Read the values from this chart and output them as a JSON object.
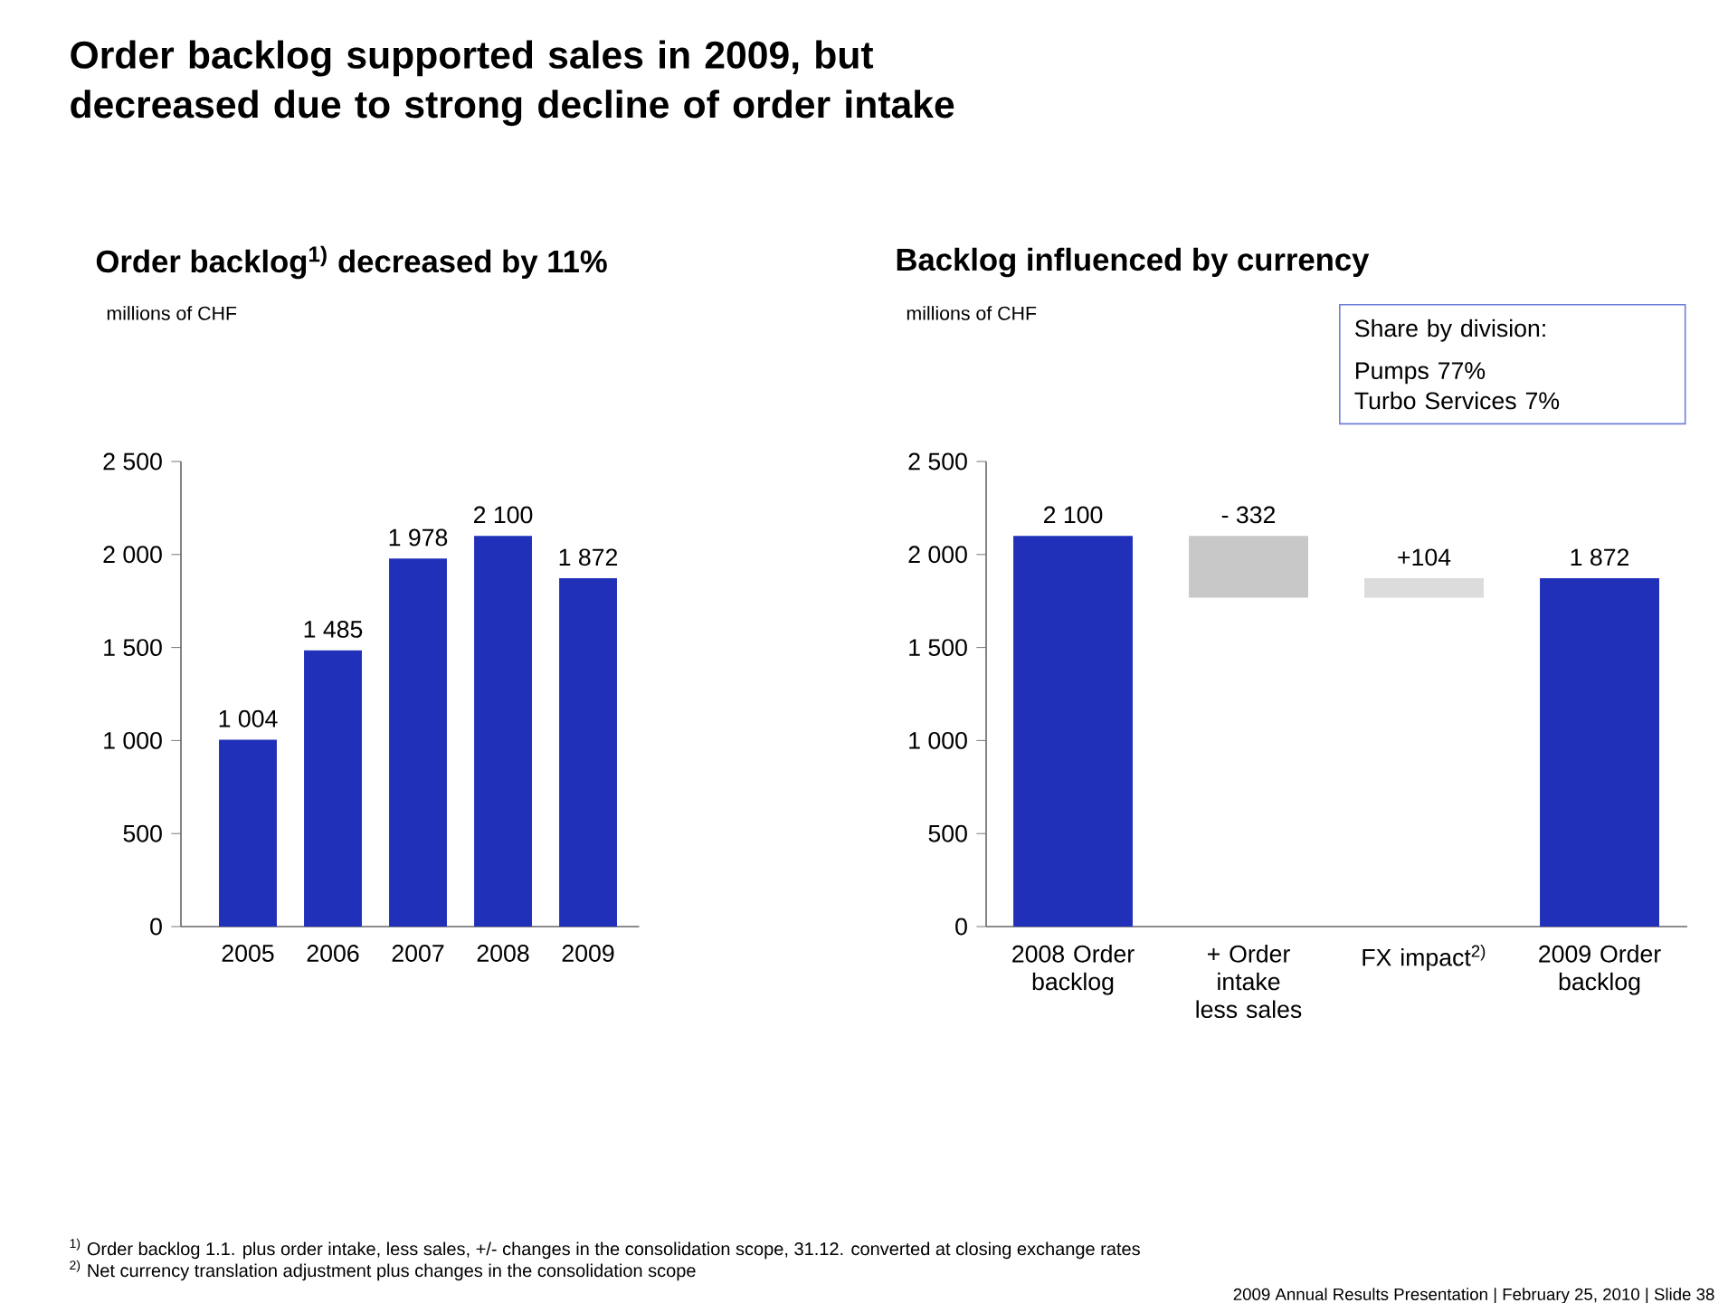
{
  "chart_data": [
    {
      "type": "bar",
      "title": "Order backlog$^{1)}$ decreased by 11%",
      "ylabel": "millions of CHF",
      "categories": [
        "2005",
        "2006",
        "2007",
        "2008",
        "2009"
      ],
      "values": [
        1004,
        1485,
        1978,
        2100,
        1872
      ],
      "color": "#2130b8",
      "value_labels": [
        "1 004",
        "1 485",
        "1 978",
        "2 100",
        "1 872"
      ],
      "ylim": [
        0,
        2500
      ],
      "yticks": [
        0,
        {
          "value": 500,
          "label": "500"
        },
        {
          "value": 1000,
          "label": "1 000"
        },
        {
          "value": 1500,
          "label": "1 500"
        },
        {
          "value": 2000,
          "label": "2 000"
        },
        {
          "value": 2500,
          "label": "2 500"
        }
      ],
      "annotations": [
        "Order backlog supported sales in 2009, but decreased due to strong decline of order intake",
        "$^{1)}$ Order backlog 1.1. plus order intake, less sales, +/- changes in the consolidation scope, 31.12. converted at closing exchange rates",
        "$^{2)}$ Net currency translation adjustment plus changes in the consolidation scope",
        "2009 Annual Results Presentation | February 25, 2010 | Slide 38"
      ]
    },
    {
      "type": "bar",
      "title": "Backlog influenced by currency",
      "ylabel": "millions of CHF",
      "categories": [
        "2008 Order backlog",
        "+ Order intake less sales",
        "FX impact$^{2)}$",
        "2009 Order backlog"
      ],
      "values": [
        2100,
        -332,
        104,
        1872
      ],
      "base": [
        0,
        2100,
        1768,
        0
      ],
      "colors": [
        "#2130b8",
        "#c8c8c8",
        "#dcdcdc",
        "#2130b8"
      ],
      "value_labels": [
        "2 100",
        "- 332",
        "+104",
        "1 872"
      ],
      "ylim": [
        0,
        2500
      ],
      "yticks": [
        0,
        {
          "value": 500,
          "label": "500"
        },
        {
          "value": 1000,
          "label": "1 000"
        },
        {
          "value": 1500,
          "label": "1 500"
        },
        {
          "value": 2000,
          "label": "2 000"
        },
        {
          "value": 2500,
          "label": "2 500"
        }
      ],
      "annotations": [
        "Share by division:",
        "Pumps 77%",
        "Turbo Services 7%"
      ]
    }
  ]
}
